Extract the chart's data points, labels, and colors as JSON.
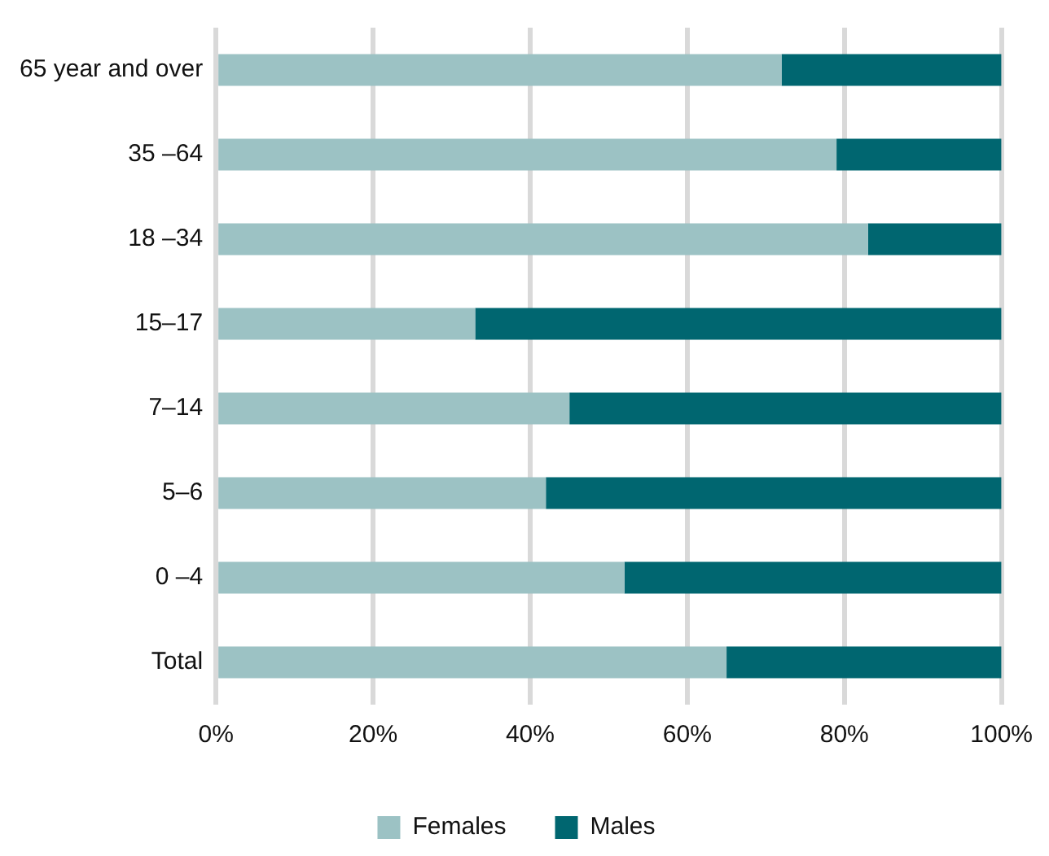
{
  "chart_data": {
    "type": "bar",
    "orientation": "horizontal",
    "stacked": true,
    "categories": [
      "65 year and over",
      "35 –64",
      "18 –34",
      "15–17",
      "7–14",
      "5–6",
      "0 –4",
      "Total"
    ],
    "series": [
      {
        "name": "Females",
        "color": "#9cc2c4",
        "values": [
          72,
          79,
          83,
          33,
          45,
          42,
          52,
          65
        ]
      },
      {
        "name": "Males",
        "color": "#006670",
        "values": [
          28,
          21,
          17,
          67,
          55,
          58,
          48,
          35
        ]
      }
    ],
    "xlim": [
      0,
      100
    ],
    "xticks": [
      {
        "value": 0,
        "label": "0%"
      },
      {
        "value": 20,
        "label": "20%"
      },
      {
        "value": 40,
        "label": "40%"
      },
      {
        "value": 60,
        "label": "60%"
      },
      {
        "value": 80,
        "label": "80%"
      },
      {
        "value": 100,
        "label": "100%"
      }
    ],
    "grid": "x",
    "legend": "bottom"
  }
}
